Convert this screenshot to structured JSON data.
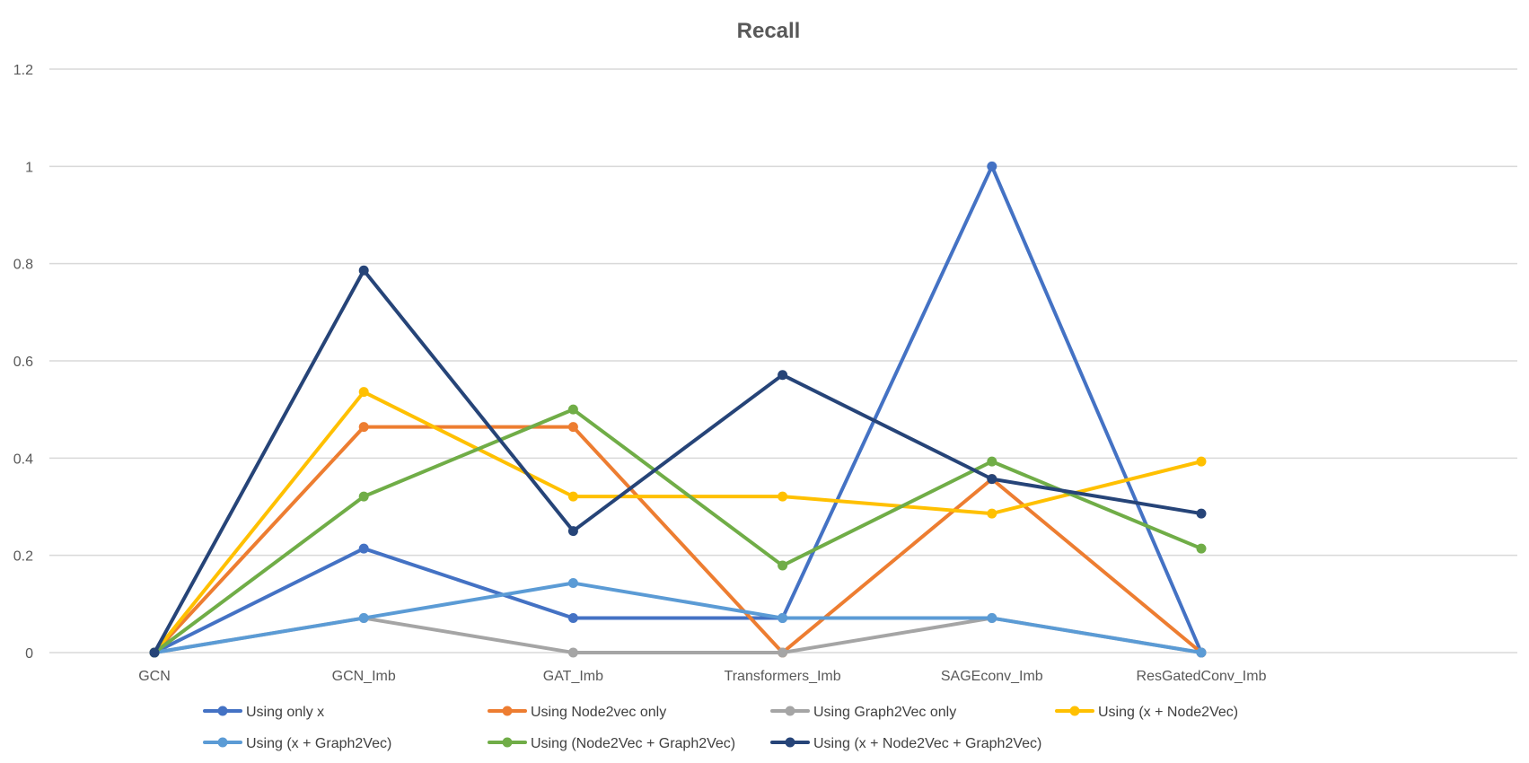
{
  "chart_data": {
    "type": "line",
    "title": "Recall",
    "xlabel": "",
    "ylabel": "",
    "categories": [
      "GCN",
      "GCN_Imb",
      "GAT_Imb",
      "Transformers_Imb",
      "SAGEconv_Imb",
      "ResGatedConv_Imb"
    ],
    "ylim": [
      0,
      1.2
    ],
    "yticks": [
      "0",
      "0.2",
      "0.4",
      "0.6",
      "0.8",
      "1",
      "1.2"
    ],
    "grid": true,
    "legend_position": "bottom",
    "series": [
      {
        "name": "Using only x",
        "color": "#4472C4",
        "values": [
          0,
          0.214,
          0.071,
          0.071,
          1.0,
          0
        ]
      },
      {
        "name": "Using Node2vec only",
        "color": "#ED7D31",
        "values": [
          0,
          0.464,
          0.464,
          0,
          0.357,
          0
        ]
      },
      {
        "name": "Using Graph2Vec only",
        "color": "#A5A5A5",
        "values": [
          0,
          0.071,
          0,
          0,
          0.071,
          0
        ]
      },
      {
        "name": "Using (x + Node2Vec)",
        "color": "#FFC000",
        "values": [
          0,
          0.536,
          0.321,
          0.321,
          0.286,
          0.393
        ]
      },
      {
        "name": "Using (x + Graph2Vec)",
        "color": "#5B9BD5",
        "values": [
          0,
          0.071,
          0.143,
          0.071,
          0.071,
          0
        ]
      },
      {
        "name": "Using (Node2Vec + Graph2Vec)",
        "color": "#70AD47",
        "values": [
          0,
          0.321,
          0.5,
          0.179,
          0.393,
          0.214
        ]
      },
      {
        "name": "Using (x + Node2Vec + Graph2Vec)",
        "color": "#264478",
        "values": [
          0,
          0.786,
          0.25,
          0.571,
          0.357,
          0.286
        ]
      }
    ]
  }
}
